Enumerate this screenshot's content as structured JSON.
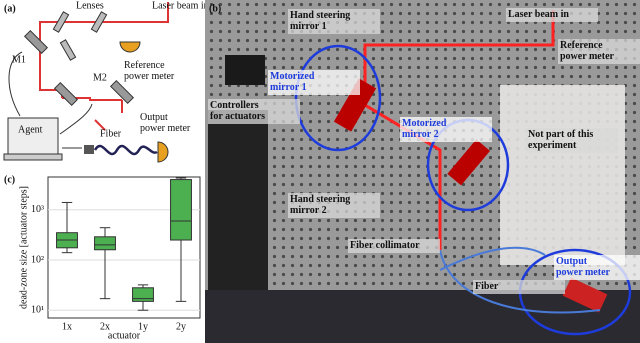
{
  "panel_a": {
    "label": "(a)",
    "lenses": "Lenses",
    "laser_in": "Laser beam in",
    "reference": [
      "Reference",
      "power meter"
    ],
    "m1": "M1",
    "m2": "M2",
    "agent": "Agent",
    "fiber": "Fiber",
    "output": [
      "Output",
      "power meter"
    ]
  },
  "panel_b": {
    "label": "(b)",
    "annotations": [
      {
        "text": [
          "Hand steering",
          "mirror 1"
        ]
      },
      {
        "text": [
          "Laser beam in"
        ]
      },
      {
        "text": [
          "Reference",
          "power meter"
        ]
      },
      {
        "text": [
          "Motorized",
          "mirror 1"
        ]
      },
      {
        "text": [
          "Controllers",
          "for actuators"
        ]
      },
      {
        "text": [
          "Motorized",
          "mirror 2"
        ]
      },
      {
        "text": [
          "Not part of this",
          "experiment"
        ]
      },
      {
        "text": [
          "Hand steering",
          "mirror 2"
        ]
      },
      {
        "text": [
          "Fiber collimator"
        ]
      },
      {
        "text": [
          "Fiber"
        ]
      },
      {
        "text": [
          "Output",
          "power meter"
        ]
      }
    ]
  },
  "chart_data": {
    "type": "box",
    "panel_label": "(c)",
    "y_label": "dead-zone size [actuator steps]",
    "x_label": "actuator",
    "categories": [
      "1x",
      "2x",
      "1y",
      "2y"
    ],
    "color": "#4caf50",
    "log_y": true,
    "grid": true,
    "ylim": [
      7,
      4500
    ],
    "yticks": [
      {
        "value": 10,
        "label": "10¹"
      },
      {
        "value": 100,
        "label": "10²"
      },
      {
        "value": 1000,
        "label": "10³"
      }
    ],
    "boxes": [
      {
        "min": 140,
        "q1": 175,
        "median": 250,
        "q3": 350,
        "max": 1400
      },
      {
        "min": 17,
        "q1": 160,
        "median": 200,
        "q3": 290,
        "max": 440
      },
      {
        "min": 10,
        "q1": 15,
        "median": 17,
        "q3": 28,
        "max": 32
      },
      {
        "min": 15,
        "q1": 250,
        "median": 600,
        "q3": 4000,
        "max": 4300
      }
    ]
  }
}
